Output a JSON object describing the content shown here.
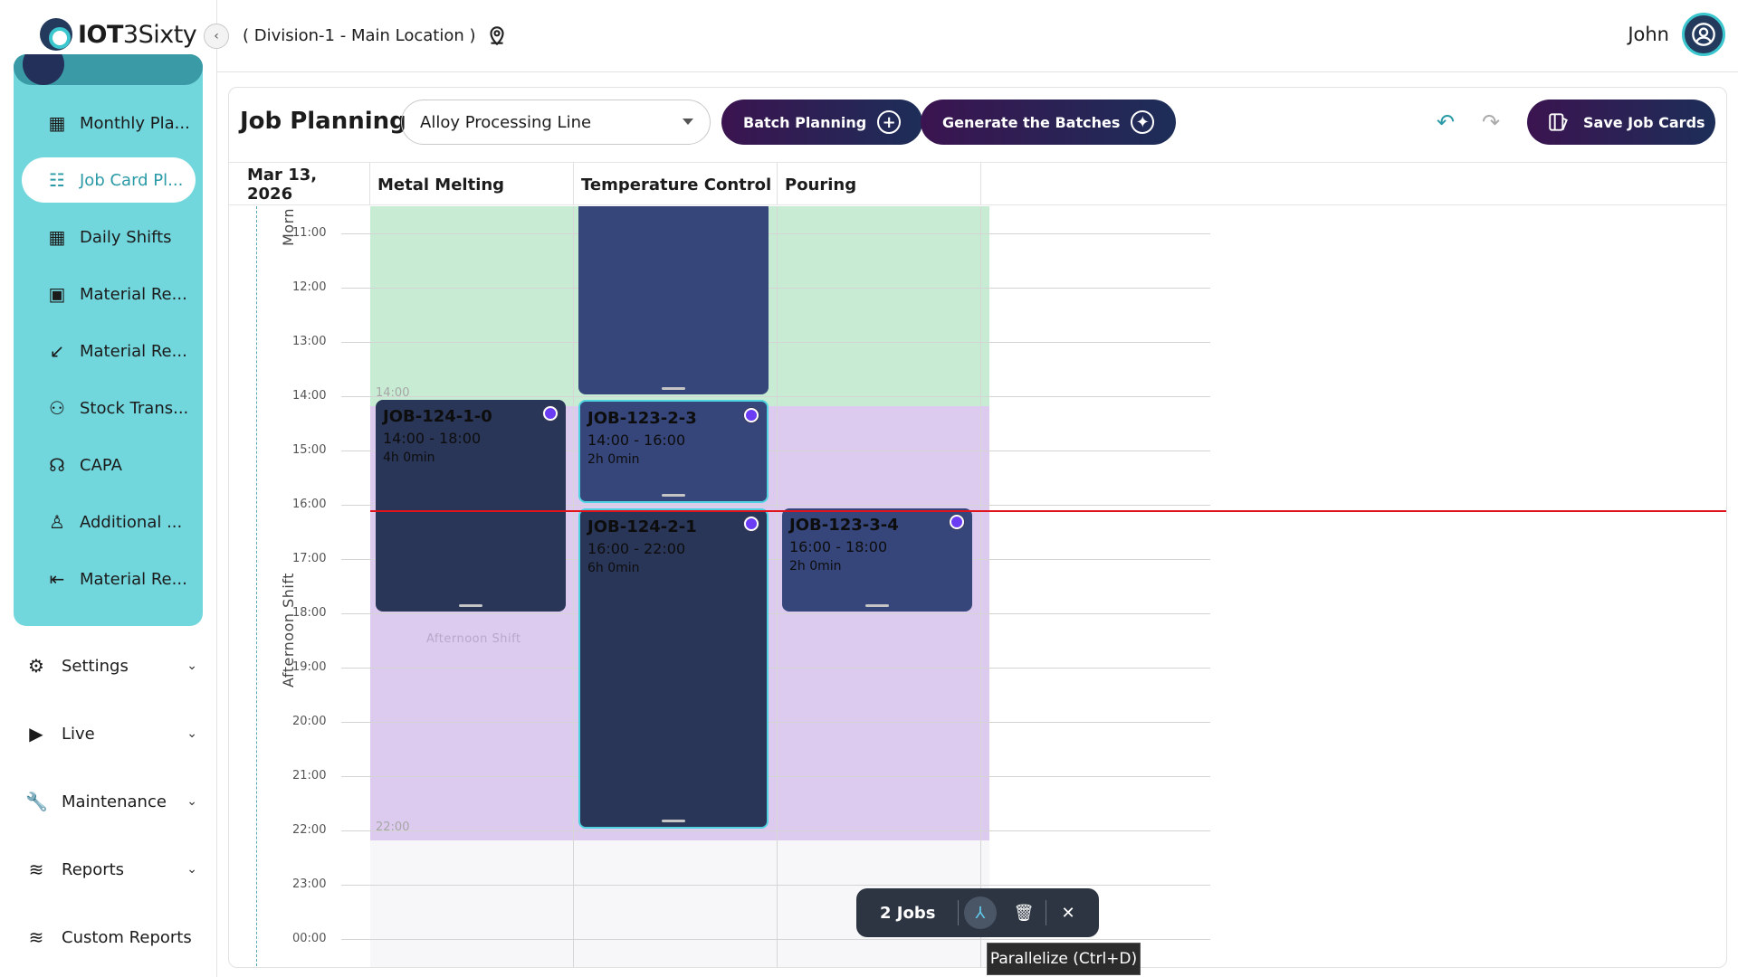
{
  "brand": {
    "name_bold": "IOT",
    "name_rest": "3Sixty"
  },
  "location": "( Division-1 - Main Location )",
  "user": {
    "name": "John"
  },
  "sidebar": {
    "items": [
      {
        "label": "Monthly Pla...",
        "icon": "calendar-icon"
      },
      {
        "label": "Job Card Pl...",
        "icon": "job-card-icon",
        "active": true
      },
      {
        "label": "Daily Shifts",
        "icon": "calendar-icon"
      },
      {
        "label": "Material Re...",
        "icon": "box-icon"
      },
      {
        "label": "Material Re...",
        "icon": "arrow-down-left-icon"
      },
      {
        "label": "Stock Trans...",
        "icon": "users-transfer-icon"
      },
      {
        "label": "CAPA",
        "icon": "capa-icon"
      },
      {
        "label": "Additional ...",
        "icon": "person-icon"
      },
      {
        "label": "Material Re...",
        "icon": "return-icon"
      }
    ],
    "groups": [
      {
        "label": "Settings",
        "icon": "gear-icon",
        "expandable": true
      },
      {
        "label": "Live",
        "icon": "play-icon",
        "expandable": true
      },
      {
        "label": "Maintenance",
        "icon": "wrench-icon",
        "expandable": true
      },
      {
        "label": "Reports",
        "icon": "layers-icon",
        "expandable": true
      },
      {
        "label": "Custom Reports",
        "icon": "layers-icon",
        "expandable": false
      }
    ]
  },
  "toolbar": {
    "title": "Job Planning",
    "line_select": "Alloy Processing Line",
    "batch_planning": "Batch Planning",
    "generate_batches": "Generate the Batches",
    "save_job_cards": "Save Job Cards"
  },
  "calendar": {
    "date": "Mar 13, 2026",
    "columns": [
      "Metal Melting",
      "Temperature Control",
      "Pouring"
    ],
    "hours": [
      "11:00",
      "12:00",
      "13:00",
      "14:00",
      "15:00",
      "16:00",
      "17:00",
      "18:00",
      "19:00",
      "20:00",
      "21:00",
      "22:00",
      "23:00",
      "00:00"
    ],
    "shifts": [
      {
        "label": "Morn",
        "color": "#c8ecd3"
      },
      {
        "label": "Afternoon Shift",
        "color": "#ddcbef"
      }
    ],
    "band_marks": [
      "14:00",
      "22:00"
    ],
    "faded_shift_label": "Afternoon Shift",
    "jobs": [
      {
        "id": "",
        "column": 1,
        "start": "09:00",
        "end": "14:00",
        "range": "",
        "duration": "",
        "color": "#36467a",
        "selected": false
      },
      {
        "id": "JOB-124-1-0",
        "column": 0,
        "start": "14:00",
        "end": "18:00",
        "range": "14:00 - 18:00",
        "duration": "4h 0min",
        "color": "#2a3658",
        "selected": false
      },
      {
        "id": "JOB-123-2-3",
        "column": 1,
        "start": "14:00",
        "end": "16:00",
        "range": "14:00 - 16:00",
        "duration": "2h 0min",
        "color": "#36467a",
        "selected": true
      },
      {
        "id": "JOB-124-2-1",
        "column": 1,
        "start": "16:00",
        "end": "22:00",
        "range": "16:00 - 22:00",
        "duration": "6h 0min",
        "color": "#2a3658",
        "selected": true
      },
      {
        "id": "JOB-123-3-4",
        "column": 2,
        "start": "16:00",
        "end": "18:00",
        "range": "16:00 - 18:00",
        "duration": "2h 0min",
        "color": "#36467a",
        "selected": false
      }
    ],
    "now_time": "16:06"
  },
  "action_bar": {
    "count_label": "2 Jobs",
    "tooltip": "Parallelize (Ctrl+D)"
  }
}
